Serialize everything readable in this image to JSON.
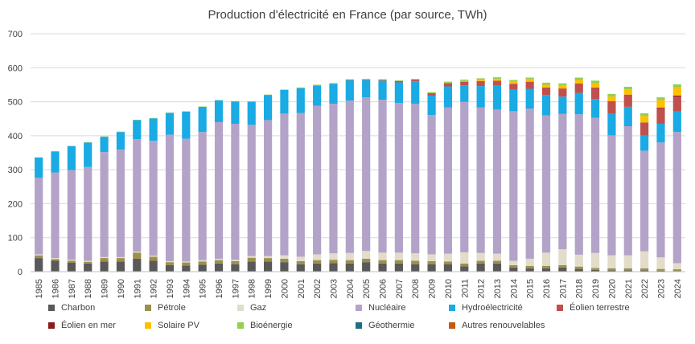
{
  "chart_data": {
    "type": "bar",
    "stacked": true,
    "title": "Production d'électricité en France (par source, TWh)",
    "ylim": [
      0,
      700
    ],
    "yticks": [
      0,
      100,
      200,
      300,
      400,
      500,
      600,
      700
    ],
    "grid": true,
    "legend": "bottom",
    "categories": [
      "1985",
      "1986",
      "1987",
      "1988",
      "1989",
      "1990",
      "1991",
      "1992",
      "1993",
      "1994",
      "1995",
      "1996",
      "1997",
      "1998",
      "1999",
      "2000",
      "2001",
      "2002",
      "2003",
      "2004",
      "2005",
      "2006",
      "2007",
      "2008",
      "2009",
      "2010",
      "2011",
      "2012",
      "2013",
      "2014",
      "2015",
      "2016",
      "2017",
      "2018",
      "2019",
      "2020",
      "2021",
      "2022",
      "2023",
      "2024"
    ],
    "series": [
      {
        "name": "Charbon",
        "color": "#595959",
        "values": [
          40,
          32,
          26,
          24,
          30,
          30,
          38,
          32,
          19,
          18,
          20,
          24,
          22,
          30,
          30,
          28,
          22,
          24,
          25,
          24,
          28,
          24,
          24,
          22,
          22,
          22,
          16,
          24,
          24,
          12,
          10,
          10,
          12,
          8,
          5,
          4,
          4,
          4,
          3,
          2
        ]
      },
      {
        "name": "Pétrole",
        "color": "#9c8f4b",
        "values": [
          8,
          5,
          6,
          5,
          10,
          10,
          18,
          12,
          9,
          9,
          10,
          10,
          9,
          11,
          10,
          10,
          9,
          10,
          10,
          10,
          10,
          10,
          10,
          10,
          9,
          8,
          8,
          8,
          8,
          7,
          7,
          7,
          7,
          7,
          6,
          6,
          6,
          6,
          5,
          5
        ]
      },
      {
        "name": "Gaz",
        "color": "#e2dccb",
        "values": [
          3,
          3,
          3,
          3,
          3,
          3,
          3,
          3,
          3,
          3,
          4,
          4,
          4,
          5,
          6,
          10,
          13,
          17,
          19,
          21,
          23,
          22,
          22,
          22,
          20,
          23,
          33,
          23,
          21,
          13,
          21,
          39,
          47,
          35,
          44,
          38,
          38,
          50,
          34,
          18
        ]
      },
      {
        "name": "Nucléaire",
        "color": "#b3a3c8",
        "values": [
          225,
          252,
          264,
          276,
          309,
          316,
          331,
          338,
          372,
          361,
          377,
          402,
          400,
          386,
          400,
          417,
          423,
          437,
          440,
          448,
          452,
          450,
          440,
          440,
          410,
          430,
          443,
          428,
          424,
          440,
          442,
          404,
          398,
          413,
          398,
          353,
          380,
          296,
          338,
          386
        ]
      },
      {
        "name": "Hydroélectricité",
        "color": "#1aaae4",
        "values": [
          60,
          62,
          70,
          72,
          45,
          52,
          56,
          66,
          64,
          80,
          74,
          64,
          66,
          68,
          74,
          70,
          73,
          60,
          59,
          60,
          51,
          56,
          61,
          66,
          57,
          62,
          48,
          63,
          70,
          63,
          58,
          60,
          51,
          63,
          55,
          63,
          57,
          45,
          55,
          60
        ]
      },
      {
        "name": "Éolien terrestre",
        "color": "#c0504d",
        "values": [
          0,
          0,
          0,
          0,
          0,
          0,
          0,
          0,
          0,
          0,
          0,
          0,
          0,
          0,
          0,
          0,
          0,
          0,
          0,
          1,
          1,
          2,
          4,
          5,
          7,
          10,
          11,
          15,
          15,
          18,
          21,
          22,
          24,
          28,
          34,
          38,
          36,
          37,
          46,
          44
        ]
      },
      {
        "name": "Éolien en mer",
        "color": "#8b1a1a",
        "values": [
          0,
          0,
          0,
          0,
          0,
          0,
          0,
          0,
          0,
          0,
          0,
          0,
          0,
          0,
          0,
          0,
          0,
          0,
          0,
          0,
          0,
          0,
          0,
          0,
          0,
          0,
          0,
          0,
          0,
          0,
          0,
          0,
          0,
          0,
          0,
          0,
          0,
          1,
          2,
          3
        ]
      },
      {
        "name": "Solaire PV",
        "color": "#ffc000",
        "values": [
          0,
          0,
          0,
          0,
          0,
          0,
          0,
          0,
          0,
          0,
          0,
          0,
          0,
          0,
          0,
          0,
          0,
          0,
          0,
          0,
          0,
          0,
          0,
          0,
          0,
          1,
          2,
          4,
          5,
          6,
          7,
          8,
          9,
          10,
          12,
          13,
          15,
          19,
          22,
          24
        ]
      },
      {
        "name": "Bioénergie",
        "color": "#92d050",
        "values": [
          0,
          0,
          1,
          1,
          1,
          1,
          1,
          1,
          1,
          1,
          1,
          1,
          1,
          1,
          1,
          1,
          2,
          2,
          2,
          2,
          2,
          2,
          2,
          2,
          3,
          3,
          4,
          4,
          5,
          5,
          5,
          6,
          6,
          7,
          8,
          8,
          8,
          8,
          8,
          9
        ]
      },
      {
        "name": "Géothermie",
        "color": "#1f6e7d",
        "values": [
          0,
          0,
          0,
          0,
          0,
          0,
          0,
          0,
          0,
          0,
          0,
          0,
          0,
          0,
          0,
          0,
          0,
          0,
          0,
          0,
          0,
          0,
          0,
          0,
          0,
          0,
          0,
          0,
          0,
          0,
          0,
          0,
          0,
          0,
          0,
          0,
          0,
          0,
          0,
          0
        ]
      },
      {
        "name": "Autres renouvelables",
        "color": "#c55a11",
        "values": [
          0,
          0,
          0,
          0,
          0,
          0,
          0,
          0,
          0,
          0,
          0,
          0,
          0,
          0,
          0,
          0,
          0,
          0,
          0,
          0,
          0,
          0,
          0,
          0,
          0,
          0,
          0,
          0,
          0,
          0,
          0,
          0,
          0,
          0,
          0,
          0,
          0,
          0,
          0,
          0
        ]
      }
    ]
  }
}
